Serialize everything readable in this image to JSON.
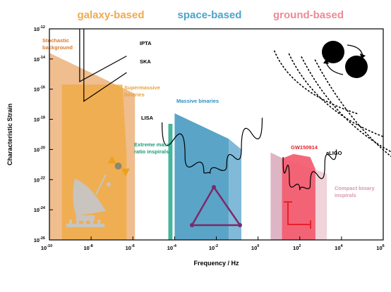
{
  "chart_data": {
    "type": "area",
    "xlabel": "Frequency / Hz",
    "ylabel": "Characteristic Strain",
    "xscale": "log",
    "yscale": "log",
    "xlim_exp": [
      -10,
      6
    ],
    "ylim_exp": [
      -26,
      -12
    ],
    "x_tick_exponents": [
      -10,
      -8,
      -6,
      -4,
      -2,
      0,
      2,
      4,
      6
    ],
    "y_tick_exponents": [
      -12,
      -14,
      -16,
      -18,
      -20,
      -22,
      -24,
      -26
    ],
    "tick_base": "10",
    "grid": false,
    "headers": [
      {
        "text": "galaxy-based",
        "color": "#f1a94e"
      },
      {
        "text": "space-based",
        "color": "#4aa3cb"
      },
      {
        "text": "ground-based",
        "color": "#ee8a94"
      }
    ],
    "annotations": [
      {
        "text": "Stochastic",
        "color": "#d9792b"
      },
      {
        "text": "background",
        "color": "#d9792b"
      },
      {
        "text": "IPTA",
        "color": "#000000"
      },
      {
        "text": "SKA",
        "color": "#000000"
      },
      {
        "text": "Supermassive",
        "color": "#e9a23b"
      },
      {
        "text": "binaries",
        "color": "#e9a23b"
      },
      {
        "text": "Massive binaries",
        "color": "#2f8fc0"
      },
      {
        "text": "LISA",
        "color": "#000000"
      },
      {
        "text": "Extreme mass",
        "color": "#1f9a7a"
      },
      {
        "text": "ratio inspirals",
        "color": "#1f9a7a"
      },
      {
        "text": "GW150914",
        "color": "#e8202a"
      },
      {
        "text": "aLIGO",
        "color": "#000000"
      },
      {
        "text": "Compact binary",
        "color": "#d99aaa"
      },
      {
        "text": "inspirals",
        "color": "#d99aaa"
      }
    ],
    "sensitivity_curves": [
      {
        "name": "IPTA",
        "points": [
          [
            -8.55,
            -12.0
          ],
          [
            -8.55,
            -15.5
          ],
          [
            -6.3,
            -13.8
          ]
        ]
      },
      {
        "name": "SKA",
        "points": [
          [
            -8.35,
            -12.0
          ],
          [
            -8.35,
            -16.8
          ],
          [
            -6.3,
            -14.9
          ]
        ]
      },
      {
        "name": "LISA",
        "points": [
          [
            -4.6,
            -18.2
          ],
          [
            -3.5,
            -20.5
          ],
          [
            -2.6,
            -21.5
          ],
          [
            -2.3,
            -21.6
          ],
          [
            -1.5,
            -21.0
          ],
          [
            -0.8,
            -20.0
          ],
          [
            0.2,
            -17.9
          ]
        ]
      },
      {
        "name": "aLIGO",
        "points": [
          [
            1.2,
            -20.5
          ],
          [
            1.5,
            -22.1
          ],
          [
            2.0,
            -22.7
          ],
          [
            2.5,
            -22.4
          ],
          [
            3.2,
            -21.0
          ],
          [
            3.75,
            -20.0
          ]
        ]
      }
    ],
    "regions": [
      {
        "name": "Stochastic background",
        "color": "#e79a52",
        "opacity": 0.65,
        "polygon": [
          [
            -10,
            -13.6
          ],
          [
            -5.9,
            -16.3
          ],
          [
            -5.9,
            -26
          ],
          [
            -10,
            -26
          ]
        ]
      },
      {
        "name": "Supermassive binaries",
        "color": "#f0a93d",
        "opacity": 0.75,
        "polygon": [
          [
            -9.4,
            -15.7
          ],
          [
            -6.5,
            -15.7
          ],
          [
            -6.3,
            -20.4
          ],
          [
            -6.3,
            -26
          ],
          [
            -9.4,
            -26
          ]
        ]
      },
      {
        "name": "Massive binaries",
        "color": "#3d94bd",
        "opacity": 0.85,
        "polygon": [
          [
            -4.0,
            -17.6
          ],
          [
            -1.4,
            -19.3
          ],
          [
            -1.4,
            -26
          ],
          [
            -4.0,
            -26
          ]
        ]
      },
      {
        "name": "Massive binaries (cont.)",
        "color": "#6aaed1",
        "opacity": 0.85,
        "polygon": [
          [
            -1.4,
            -19.3
          ],
          [
            -0.8,
            -20.0
          ],
          [
            -0.8,
            -26
          ],
          [
            -1.4,
            -26
          ]
        ]
      },
      {
        "name": "Extreme mass ratio inspirals",
        "color": "#26a88a",
        "opacity": 0.85,
        "polygon": [
          [
            -4.3,
            -18.3
          ],
          [
            -4.1,
            -18.3
          ],
          [
            -4.1,
            -26
          ],
          [
            -4.3,
            -26
          ]
        ]
      },
      {
        "name": "Compact binary inspirals",
        "color": "#d6a3b5",
        "opacity": 0.8,
        "polygon": [
          [
            0.6,
            -20.2
          ],
          [
            1.2,
            -20.6
          ],
          [
            1.2,
            -26
          ],
          [
            0.6,
            -26
          ]
        ]
      },
      {
        "name": "Compact binary inspirals (faint)",
        "color": "#eecfd6",
        "opacity": 0.9,
        "polygon": [
          [
            1.2,
            -20.6
          ],
          [
            3.3,
            -21.6
          ],
          [
            3.3,
            -26
          ],
          [
            1.2,
            -26
          ]
        ]
      },
      {
        "name": "GW150914",
        "color": "#f3576a",
        "opacity": 0.9,
        "polygon": [
          [
            1.15,
            -20.6
          ],
          [
            1.7,
            -20.3
          ],
          [
            2.5,
            -20.5
          ],
          [
            2.75,
            -21.3
          ],
          [
            2.75,
            -26
          ],
          [
            1.15,
            -26
          ]
        ]
      }
    ],
    "markers": [
      {
        "shape": "triangle-up",
        "color": "#eba11c",
        "x": -7.0,
        "y": -20.7
      },
      {
        "shape": "circle",
        "color": "#8a8a6a",
        "x": -6.7,
        "y": -21.1
      },
      {
        "shape": "triangle-down",
        "color": "#eba11c",
        "x": -6.35,
        "y": -21.5
      }
    ],
    "pulsar_orbits": [
      {
        "x_exp": 1.8,
        "y_exp": -13.0,
        "span": 0.9
      },
      {
        "x_exp": 2.5,
        "y_exp": -13.2,
        "span": 1.3
      },
      {
        "x_exp": 3.1,
        "y_exp": -13.4,
        "span": 1.6
      },
      {
        "x_exp": 3.75,
        "y_exp": -13.6,
        "span": 1.9
      }
    ],
    "icons": [
      "radio-telescope-icon",
      "lisa-triangle-icon",
      "ligo-l-icon",
      "binary-orbit-icon"
    ]
  }
}
